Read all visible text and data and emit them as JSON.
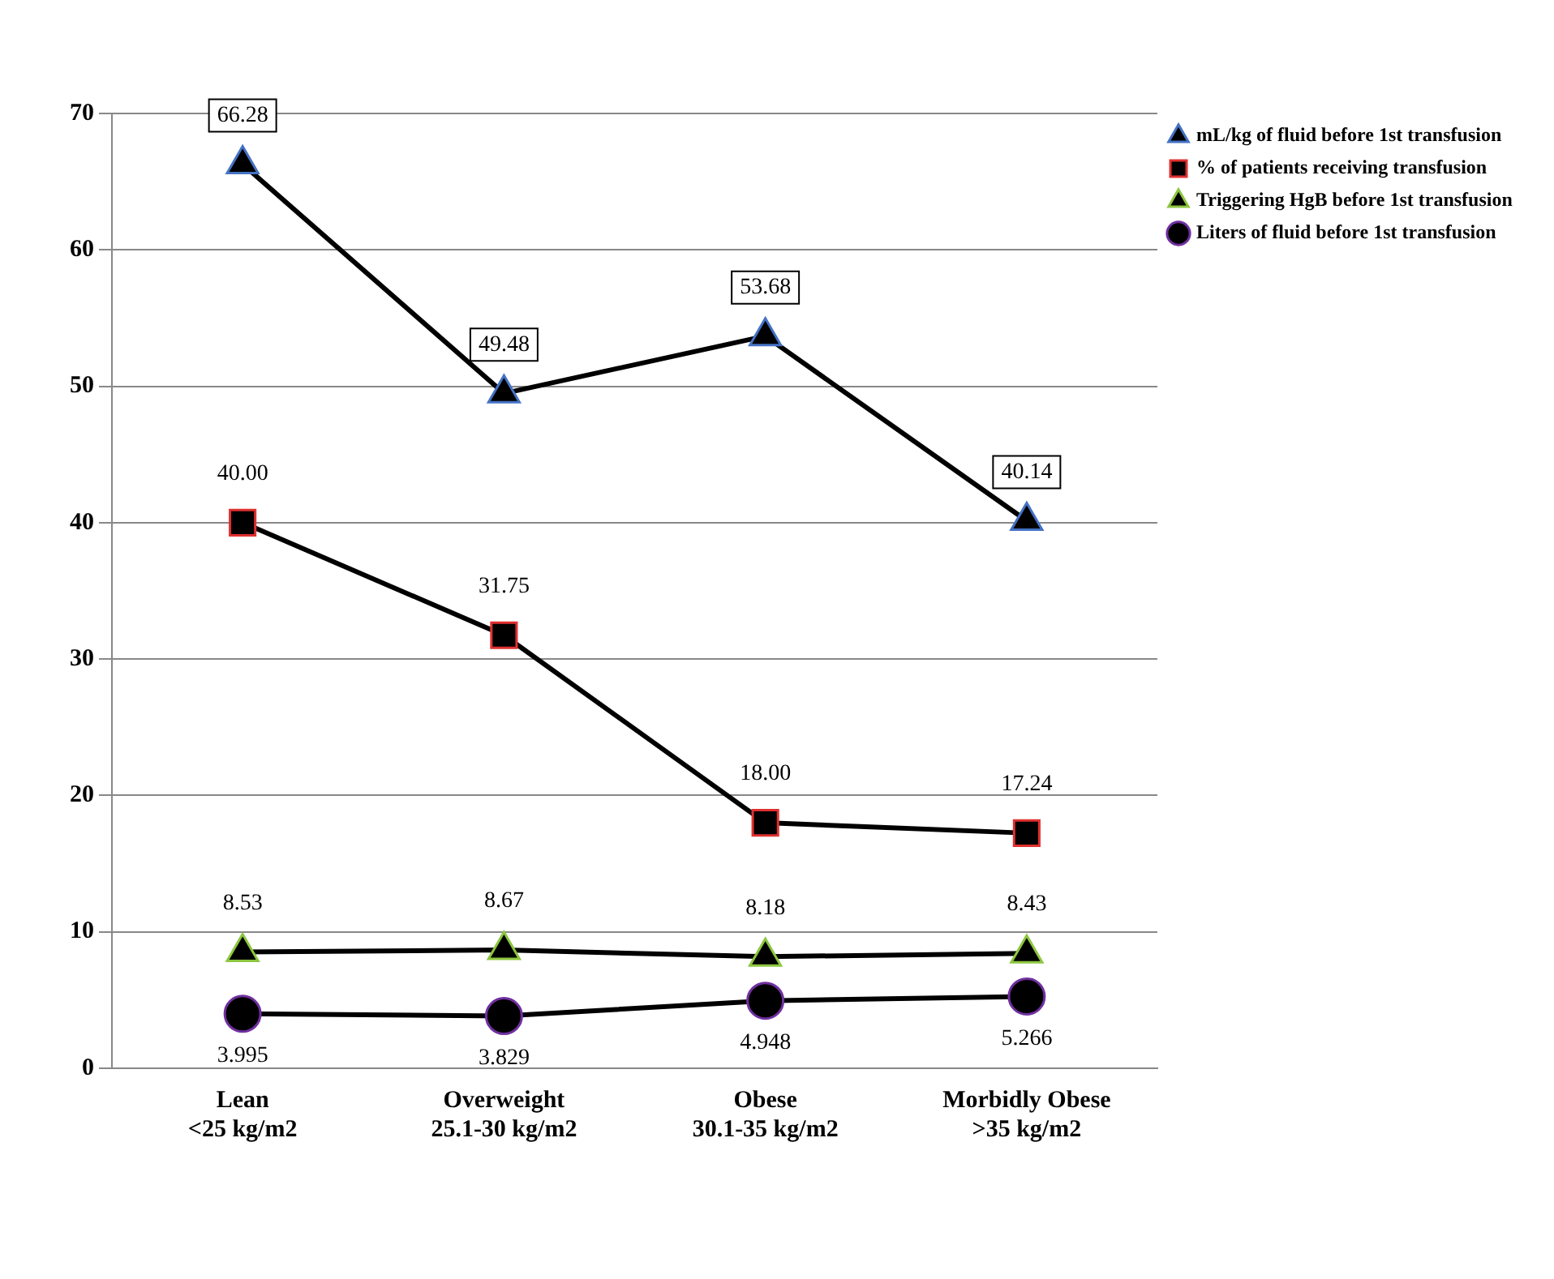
{
  "chart_data": {
    "type": "line",
    "categories": [
      "Lean\n<25 kg/m2",
      "Overweight\n25.1-30 kg/m2",
      "Obese\n30.1-35 kg/m2",
      "Morbidly Obese\n>35 kg/m2"
    ],
    "series": [
      {
        "name": "mL/kg of fluid before 1st transfusion",
        "color": "#4472c4",
        "marker": "triangle",
        "values": [
          66.28,
          49.48,
          53.68,
          40.14
        ]
      },
      {
        "name": "% of patients receiving transfusion",
        "color": "#e03030",
        "marker": "square",
        "values": [
          40.0,
          31.75,
          18.0,
          17.24
        ]
      },
      {
        "name": "Triggering HgB before 1st transfusion",
        "color": "#8cc63f",
        "marker": "triangle",
        "values": [
          8.53,
          8.67,
          8.18,
          8.43
        ]
      },
      {
        "name": "Liters of fluid before 1st transfusion",
        "color": "#7030a0",
        "marker": "circle",
        "values": [
          3.995,
          3.829,
          4.948,
          5.266
        ]
      }
    ],
    "value_labels": [
      [
        "66.28",
        "49.48",
        "53.68",
        "40.14"
      ],
      [
        "40.00",
        "31.75",
        "18.00",
        "17.24"
      ],
      [
        "8.53",
        "8.67",
        "8.18",
        "8.43"
      ],
      [
        "3.995",
        "3.829",
        "4.948",
        "5.266"
      ]
    ],
    "ylim": [
      0,
      70
    ],
    "yticks": [
      0,
      10,
      20,
      30,
      40,
      50,
      60,
      70
    ],
    "grid": "y",
    "legend": "top right",
    "line_style": "solid"
  }
}
